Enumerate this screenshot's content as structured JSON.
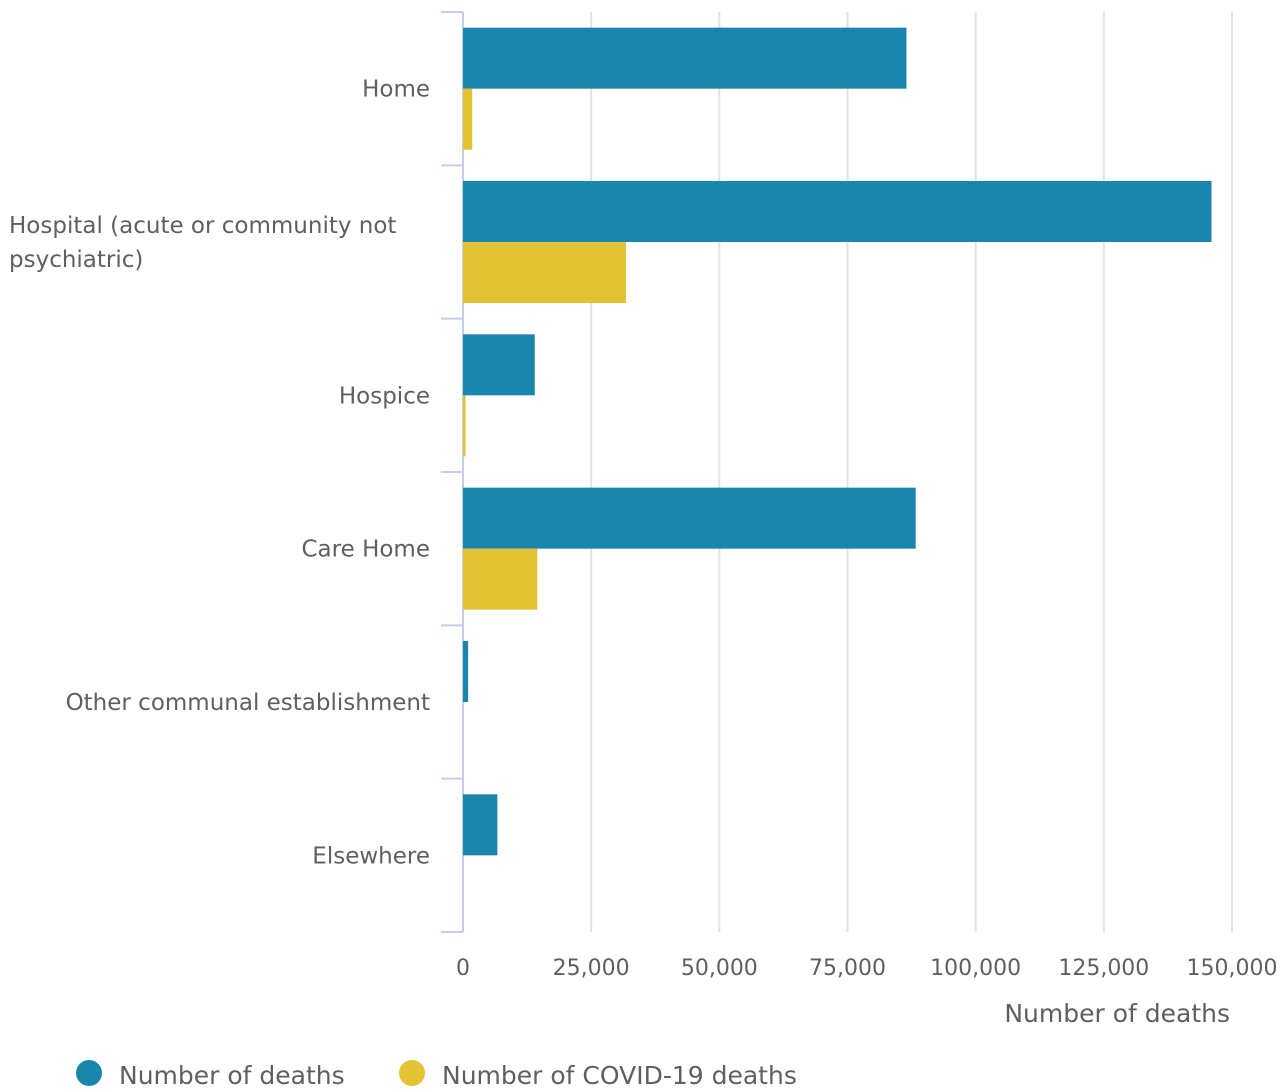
{
  "chart_data": {
    "type": "bar",
    "orientation": "horizontal",
    "categories": [
      [
        "Home"
      ],
      [
        "Hospital (acute or community not",
        "psychiatric)"
      ],
      [
        "Hospice"
      ],
      [
        "Care Home"
      ],
      [
        "Other communal establishment"
      ],
      [
        "Elsewhere"
      ]
    ],
    "series": [
      {
        "name": "Number of deaths",
        "color": "#1a85ad",
        "values": [
          86500,
          146000,
          14000,
          88300,
          1000,
          6700
        ]
      },
      {
        "name": "Number of COVID-19 deaths",
        "color": "#e3c233",
        "values": [
          1800,
          31800,
          500,
          14500,
          0,
          0
        ]
      }
    ],
    "xlabel": "Number of deaths",
    "ylabel": "",
    "xlim": [
      0,
      150000
    ],
    "xticks": [
      0,
      25000,
      50000,
      75000,
      100000,
      125000,
      150000
    ],
    "xtick_labels": [
      "0",
      "25,000",
      "50,000",
      "75,000",
      "100,000",
      "125,000",
      "150,000"
    ],
    "grid": "vertical",
    "legend": "bottom-left"
  }
}
